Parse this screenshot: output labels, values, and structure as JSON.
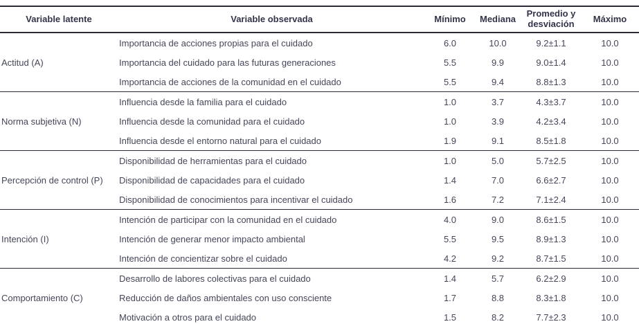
{
  "colors": {
    "text": "#45465a",
    "header_text": "#33344a",
    "rule_line": "#2b2b35",
    "background": "#ffffff"
  },
  "table": {
    "headers": {
      "latent": "Variable latente",
      "observed": "Variable observada",
      "min": "Mínimo",
      "median": "Mediana",
      "mean_sd": "Promedio y desviación",
      "max": "Máximo"
    },
    "groups": [
      {
        "latent": "Actitud (A)",
        "rows": [
          {
            "observed": "Importancia de acciones propias para el cuidado",
            "min": "6.0",
            "median": "10.0",
            "mean_sd": "9.2±1.1",
            "max": "10.0"
          },
          {
            "observed": "Importancia del cuidado para las futuras generaciones",
            "min": "5.5",
            "median": "9.9",
            "mean_sd": "9.0±1.4",
            "max": "10.0"
          },
          {
            "observed": "Importancia de acciones de la comunidad en el cuidado",
            "min": "5.5",
            "median": "9.4",
            "mean_sd": "8.8±1.3",
            "max": "10.0"
          }
        ]
      },
      {
        "latent": "Norma subjetiva (N)",
        "rows": [
          {
            "observed": "Influencia desde la familia para el cuidado",
            "min": "1.0",
            "median": "3.7",
            "mean_sd": "4.3±3.7",
            "max": "10.0"
          },
          {
            "observed": "Influencia desde la comunidad para el cuidado",
            "min": "1.0",
            "median": "3.9",
            "mean_sd": "4.2±3.4",
            "max": "10.0"
          },
          {
            "observed": "Influencia desde el entorno natural para el cuidado",
            "min": "1.9",
            "median": "9.1",
            "mean_sd": "8.5±1.8",
            "max": "10.0"
          }
        ]
      },
      {
        "latent": "Percepción de control (P)",
        "rows": [
          {
            "observed": "Disponibilidad de herramientas para el cuidado",
            "min": "1.0",
            "median": "5.0",
            "mean_sd": "5.7±2.5",
            "max": "10.0"
          },
          {
            "observed": "Disponibilidad de capacidades para el cuidado",
            "min": "1.4",
            "median": "7.0",
            "mean_sd": "6.6±2.7",
            "max": "10.0"
          },
          {
            "observed": "Disponibilidad de conocimientos para incentivar el cuidado",
            "min": "1.6",
            "median": "7.2",
            "mean_sd": "7.1±2.4",
            "max": "10.0"
          }
        ]
      },
      {
        "latent": "Intención (I)",
        "rows": [
          {
            "observed": "Intención de participar con la comunidad en el cuidado",
            "min": "4.0",
            "median": "9.0",
            "mean_sd": "8.6±1.5",
            "max": "10.0"
          },
          {
            "observed": "Intención de generar menor impacto ambiental",
            "min": "5.5",
            "median": "9.5",
            "mean_sd": "8.9±1.3",
            "max": "10.0"
          },
          {
            "observed": "Intención de concientizar sobre el cuidado",
            "min": "4.2",
            "median": "9.2",
            "mean_sd": "8.7±1.5",
            "max": "10.0"
          }
        ]
      },
      {
        "latent": "Comportamiento (C)",
        "rows": [
          {
            "observed": "Desarrollo de labores colectivas para el cuidado",
            "min": "1.4",
            "median": "5.7",
            "mean_sd": "6.2±2.9",
            "max": "10.0"
          },
          {
            "observed": "Reducción de daños ambientales con uso consciente",
            "min": "1.7",
            "median": "8.8",
            "mean_sd": "8.3±1.8",
            "max": "10.0"
          },
          {
            "observed": "Motivación a otros para el cuidado",
            "min": "1.5",
            "median": "8.2",
            "mean_sd": "7.7±2.3",
            "max": "10.0"
          }
        ]
      }
    ]
  }
}
